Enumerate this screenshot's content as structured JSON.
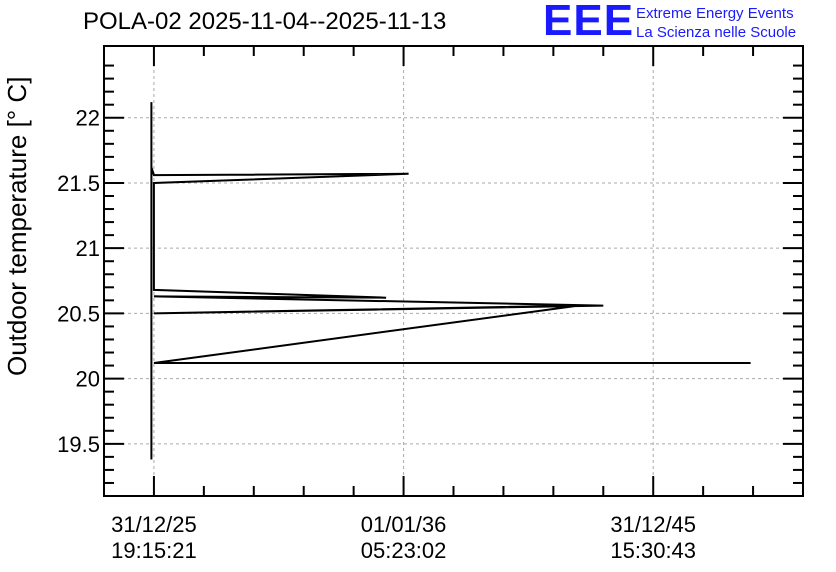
{
  "chart_data": {
    "type": "line",
    "title": "POLA-02 2025-11-04--2025-11-13",
    "ylabel": "Outdoor temperature [° C]",
    "xlabel": "",
    "ylim": [
      19.1,
      22.55
    ],
    "yticks": [
      19.5,
      20,
      20.5,
      21,
      21.5,
      22
    ],
    "ytick_labels": [
      "19.5",
      "20",
      "20.5",
      "21",
      "21.5",
      "22"
    ],
    "xlim": [
      -0.2,
      2.6
    ],
    "xticks": [
      0,
      1,
      2
    ],
    "xtick_labels": [
      {
        "date": "31/12/25",
        "time": "19:15:21"
      },
      {
        "date": "01/01/36",
        "time": "05:23:02"
      },
      {
        "date": "31/12/45",
        "time": "15:30:43"
      }
    ],
    "grid": true,
    "series": [
      {
        "values": [
          {
            "x": -0.01,
            "y": 22.12
          },
          {
            "x": -0.01,
            "y": 19.38
          },
          {
            "x": -0.01,
            "y": 21.62
          },
          {
            "x": 0.0,
            "y": 21.56
          },
          {
            "x": 1.02,
            "y": 21.57
          },
          {
            "x": 0.0,
            "y": 21.5
          },
          {
            "x": 0.0,
            "y": 20.68
          },
          {
            "x": 0.93,
            "y": 20.62
          },
          {
            "x": 0.0,
            "y": 20.63
          },
          {
            "x": 1.8,
            "y": 20.56
          },
          {
            "x": 0.0,
            "y": 20.5
          },
          {
            "x": 1.7,
            "y": 20.56
          },
          {
            "x": 0.0,
            "y": 20.12
          },
          {
            "x": 2.39,
            "y": 20.12
          },
          {
            "x": 0.0,
            "y": 20.12
          }
        ]
      }
    ]
  },
  "logo": {
    "letters": "EEE",
    "line1": "Extreme Energy Events",
    "line2": "La Scienza nelle Scuole"
  }
}
